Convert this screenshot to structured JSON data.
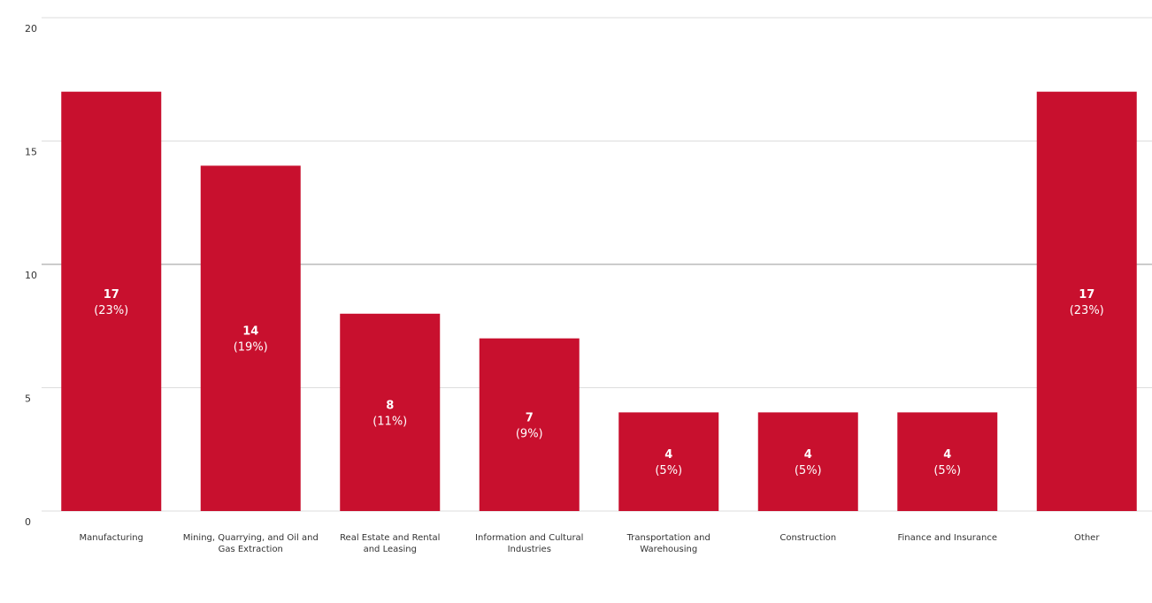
{
  "chart_data": {
    "type": "bar",
    "categories": [
      [
        "Manufacturing"
      ],
      [
        "Mining, Quarrying, and Oil and",
        "Gas Extraction"
      ],
      [
        "Real Estate and Rental",
        "and Leasing"
      ],
      [
        "Information and Cultural",
        "Industries"
      ],
      [
        "Transportation and",
        "Warehousing"
      ],
      [
        "Construction"
      ],
      [
        "Finance and Insurance"
      ],
      [
        "Other"
      ]
    ],
    "values": [
      17,
      14,
      8,
      7,
      4,
      4,
      4,
      17
    ],
    "percent_labels": [
      "(23%)",
      "(19%)",
      "(11%)",
      "(9%)",
      "(5%)",
      "(5%)",
      "(5%)",
      "(23%)"
    ],
    "value_labels": [
      "17",
      "14",
      "8",
      "7",
      "4",
      "4",
      "4",
      "17"
    ],
    "ylim": [
      0,
      20
    ],
    "yticks": [
      "0",
      "5",
      "10",
      "15",
      "20"
    ],
    "title": "",
    "xlabel": "",
    "ylabel": "",
    "grid": true,
    "colors": {
      "bar": "#c8102e",
      "grid": "#dddddd",
      "grid_major": "#999999"
    }
  }
}
